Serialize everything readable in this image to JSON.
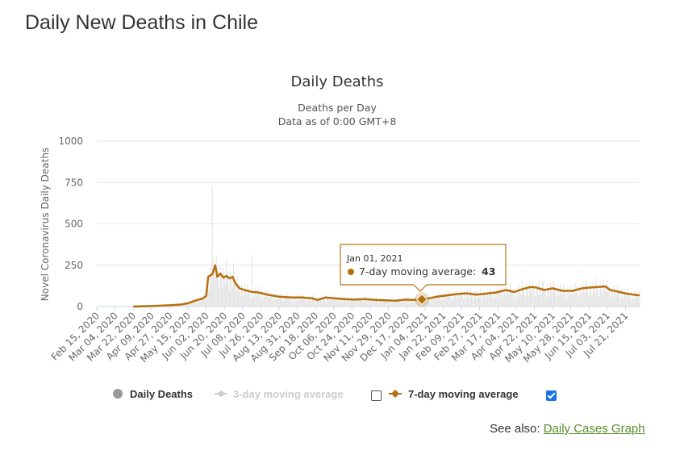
{
  "page": {
    "title": "Daily New Deaths in Chile"
  },
  "see_also": {
    "label": "See also:",
    "link": "Daily Cases Graph"
  },
  "colors": {
    "avg7": "#b5700d",
    "daily_bar": "#e3e3e3",
    "daily_marker": "#999999",
    "avg3_disabled": "#cccccc",
    "grid": "#e6e6e6"
  },
  "tooltip": {
    "date": "Jan 01, 2021",
    "label": "7-day moving average:",
    "value": "43"
  },
  "legend": {
    "items": [
      {
        "label": "Daily Deaths",
        "icon": "circle-marker-icon",
        "enabled": true
      },
      {
        "label": "3-day moving average",
        "icon": "line-diamond-icon",
        "enabled": false,
        "checkbox": false
      },
      {
        "label": "7-day moving average",
        "icon": "line-diamond-icon",
        "enabled": true,
        "checkbox": true
      }
    ]
  },
  "chart_data": {
    "type": "line",
    "title": "Daily Deaths",
    "subtitle_lines": [
      "Deaths per Day",
      "Data as of 0:00 GMT+8"
    ],
    "ylabel": "Novel Coronavirus Daily Deaths",
    "ylim": [
      0,
      1000
    ],
    "yticks": [
      0,
      250,
      500,
      750,
      1000
    ],
    "x_start": "Feb 15, 2020",
    "x_end": "Aug 04, 2021",
    "xtick_labels": [
      "Feb 15, 2020",
      "Mar 04, 2020",
      "Mar 22, 2020",
      "Apr 09, 2020",
      "Apr 27, 2020",
      "May 15, 2020",
      "Jun 02, 2020",
      "Jun 20, 2020",
      "Jul 08, 2020",
      "Jul 26, 2020",
      "Aug 13, 2020",
      "Aug 31, 2020",
      "Sep 18, 2020",
      "Oct 06, 2020",
      "Oct 24, 2020",
      "Nov 11, 2020",
      "Nov 29, 2020",
      "Dec 17, 2020",
      "Jan 04, 2021",
      "Jan 22, 2021",
      "Feb 09, 2021",
      "Feb 27, 2021",
      "Mar 17, 2021",
      "Apr 04, 2021",
      "Apr 22, 2021",
      "May 10, 2021",
      "May 28, 2021",
      "Jun 15, 2021",
      "Jul 03, 2021",
      "Jul 21, 2021"
    ],
    "series": [
      {
        "name": "7-day moving average",
        "points": [
          [
            "Mar 22, 2020",
            0
          ],
          [
            "Apr 09, 2020",
            3
          ],
          [
            "Apr 27, 2020",
            8
          ],
          [
            "May 08, 2020",
            12
          ],
          [
            "May 15, 2020",
            20
          ],
          [
            "May 22, 2020",
            35
          ],
          [
            "May 30, 2020",
            50
          ],
          [
            "Jun 02, 2020",
            65
          ],
          [
            "Jun 04, 2020",
            180
          ],
          [
            "Jun 08, 2020",
            195
          ],
          [
            "Jun 11, 2020",
            250
          ],
          [
            "Jun 13, 2020",
            180
          ],
          [
            "Jun 16, 2020",
            200
          ],
          [
            "Jun 19, 2020",
            175
          ],
          [
            "Jun 22, 2020",
            185
          ],
          [
            "Jun 25, 2020",
            170
          ],
          [
            "Jun 28, 2020",
            180
          ],
          [
            "Jul 01, 2020",
            140
          ],
          [
            "Jul 05, 2020",
            110
          ],
          [
            "Jul 10, 2020",
            100
          ],
          [
            "Jul 16, 2020",
            90
          ],
          [
            "Jul 24, 2020",
            85
          ],
          [
            "Aug 03, 2020",
            70
          ],
          [
            "Aug 13, 2020",
            60
          ],
          [
            "Aug 25, 2020",
            55
          ],
          [
            "Sep 05, 2020",
            55
          ],
          [
            "Sep 15, 2020",
            50
          ],
          [
            "Sep 20, 2020",
            40
          ],
          [
            "Sep 28, 2020",
            55
          ],
          [
            "Oct 06, 2020",
            50
          ],
          [
            "Oct 16, 2020",
            45
          ],
          [
            "Oct 26, 2020",
            42
          ],
          [
            "Nov 06, 2020",
            45
          ],
          [
            "Nov 16, 2020",
            40
          ],
          [
            "Nov 26, 2020",
            38
          ],
          [
            "Dec 06, 2020",
            35
          ],
          [
            "Dec 16, 2020",
            42
          ],
          [
            "Dec 24, 2020",
            40
          ],
          [
            "Jan 01, 2021",
            43
          ],
          [
            "Jan 08, 2021",
            50
          ],
          [
            "Jan 16, 2021",
            60
          ],
          [
            "Jan 26, 2021",
            68
          ],
          [
            "Feb 04, 2021",
            75
          ],
          [
            "Feb 14, 2021",
            80
          ],
          [
            "Feb 24, 2021",
            72
          ],
          [
            "Mar 05, 2021",
            78
          ],
          [
            "Mar 15, 2021",
            85
          ],
          [
            "Mar 25, 2021",
            100
          ],
          [
            "Apr 02, 2021",
            88
          ],
          [
            "Apr 10, 2021",
            105
          ],
          [
            "Apr 18, 2021",
            118
          ],
          [
            "Apr 24, 2021",
            115
          ],
          [
            "May 02, 2021",
            100
          ],
          [
            "May 10, 2021",
            110
          ],
          [
            "May 20, 2021",
            95
          ],
          [
            "May 30, 2021",
            95
          ],
          [
            "Jun 08, 2021",
            110
          ],
          [
            "Jun 16, 2021",
            115
          ],
          [
            "Jun 24, 2021",
            118
          ],
          [
            "Jul 01, 2021",
            122
          ],
          [
            "Jul 06, 2021",
            100
          ],
          [
            "Jul 14, 2021",
            90
          ],
          [
            "Jul 22, 2021",
            78
          ],
          [
            "Jul 29, 2021",
            72
          ],
          [
            "Aug 04, 2021",
            68
          ]
        ]
      }
    ],
    "daily_spikes": [
      [
        "Jun 08, 2020",
        730
      ],
      [
        "Jul 17, 2020",
        310
      ],
      [
        "Jun 22, 2020",
        280
      ],
      [
        "Jun 29, 2020",
        260
      ]
    ],
    "highlight": {
      "date": "Jan 01, 2021",
      "value": 43
    }
  }
}
